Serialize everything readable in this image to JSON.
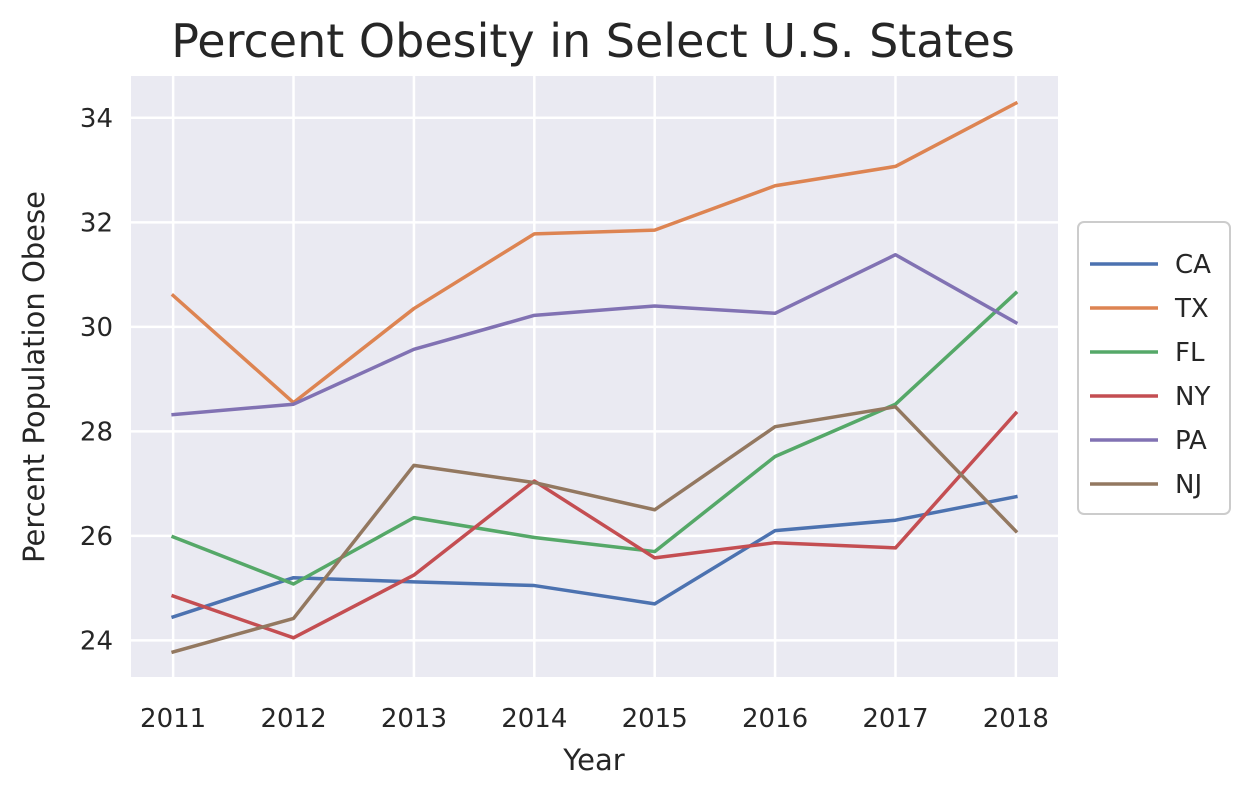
{
  "chart_data": {
    "type": "line",
    "title": "Percent Obesity in Select U.S. States",
    "xlabel": "Year",
    "ylabel": "Percent Population Obese",
    "x": [
      "2011",
      "2012",
      "2013",
      "2014",
      "2015",
      "2016",
      "2017",
      "2018"
    ],
    "xlim": [
      2010.65,
      2018.35
    ],
    "ylim": [
      23.3,
      34.8
    ],
    "yticks": [
      "24",
      "26",
      "28",
      "30",
      "32",
      "34"
    ],
    "grid": true,
    "legend_position": "center-right",
    "series": [
      {
        "name": "CA",
        "color": "#4c72b0",
        "values": [
          24.45,
          25.2,
          25.12,
          25.05,
          24.7,
          26.1,
          26.3,
          26.75
        ]
      },
      {
        "name": "TX",
        "color": "#dd8452",
        "values": [
          30.6,
          28.55,
          30.35,
          31.78,
          31.85,
          32.7,
          33.07,
          34.28
        ]
      },
      {
        "name": "FL",
        "color": "#55a868",
        "values": [
          25.98,
          25.08,
          26.35,
          25.97,
          25.7,
          27.52,
          28.52,
          30.65
        ]
      },
      {
        "name": "NY",
        "color": "#c44e52",
        "values": [
          24.85,
          24.05,
          25.25,
          27.05,
          25.58,
          25.87,
          25.77,
          28.35
        ]
      },
      {
        "name": "PA",
        "color": "#8172b3",
        "values": [
          28.32,
          28.52,
          29.57,
          30.22,
          30.4,
          30.26,
          31.38,
          30.08
        ]
      },
      {
        "name": "NJ",
        "color": "#937860",
        "values": [
          23.78,
          24.42,
          27.35,
          27.02,
          26.5,
          28.09,
          28.47,
          26.09
        ]
      }
    ]
  },
  "colors": {
    "plot_background": "#eaeaf2",
    "grid": "#ffffff",
    "legend_border": "#cccccc"
  }
}
